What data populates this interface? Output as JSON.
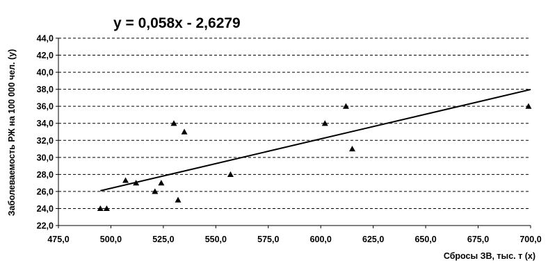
{
  "chart_data": {
    "type": "scatter",
    "equation": "y = 0,058x - 2,6279",
    "xlabel": "Сбросы ЗВ, тыс. т (x)",
    "ylabel": "Заболеваемость РЖ на 100 000 чел. (y)",
    "xlim": [
      475,
      700
    ],
    "ylim": [
      22,
      44
    ],
    "x_ticks": [
      475,
      500,
      525,
      550,
      575,
      600,
      625,
      650,
      675,
      700
    ],
    "y_ticks": [
      22,
      24,
      26,
      28,
      30,
      32,
      34,
      36,
      38,
      40,
      42,
      44
    ],
    "x_tick_labels": [
      "475,0",
      "500,0",
      "525,0",
      "550,0",
      "575,0",
      "600,0",
      "625,0",
      "650,0",
      "675,0",
      "700,0"
    ],
    "y_tick_labels": [
      "22,0",
      "24,0",
      "26,0",
      "28,0",
      "30,0",
      "32,0",
      "34,0",
      "36,0",
      "38,0",
      "40,0",
      "42,0",
      "44,0"
    ],
    "grid": "horizontal-dashed",
    "marker": "triangle",
    "trendline": {
      "slope": 0.058,
      "intercept": -2.6279,
      "x_range": [
        495,
        700
      ]
    },
    "points": [
      {
        "x": 495,
        "y": 24
      },
      {
        "x": 498,
        "y": 24
      },
      {
        "x": 507,
        "y": 27.3
      },
      {
        "x": 512,
        "y": 27
      },
      {
        "x": 521,
        "y": 26
      },
      {
        "x": 524,
        "y": 27
      },
      {
        "x": 530,
        "y": 34
      },
      {
        "x": 532,
        "y": 25
      },
      {
        "x": 535,
        "y": 33
      },
      {
        "x": 557,
        "y": 28
      },
      {
        "x": 602,
        "y": 34
      },
      {
        "x": 612,
        "y": 36
      },
      {
        "x": 615,
        "y": 31
      },
      {
        "x": 699,
        "y": 36
      }
    ]
  }
}
